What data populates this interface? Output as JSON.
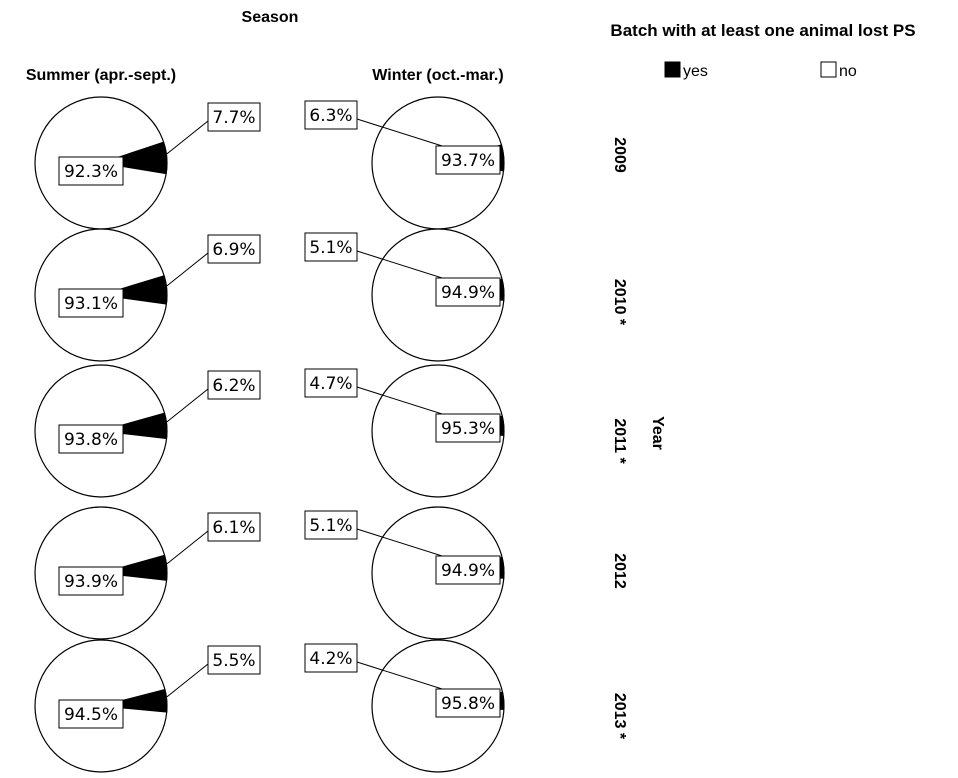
{
  "chart_data": {
    "type": "pie",
    "title": "Season",
    "legend": {
      "title": "Batch with at least one animal lost PS",
      "entries": [
        {
          "name": "yes",
          "color": "#000000"
        },
        {
          "name": "no",
          "color": "#ffffff"
        }
      ],
      "placement": "top-right"
    },
    "column_labels": [
      "Summer (apr.-sept.)",
      "Winter (oct.-mar.)"
    ],
    "row_axis_label": "Year",
    "row_labels": [
      "2009",
      "2010 *",
      "2011 *",
      "2012",
      "2013 *"
    ],
    "pies": [
      {
        "season": "Summer (apr.-sept.)",
        "year": "2009",
        "yes": 7.7,
        "no": 92.3,
        "yes_label": "7.7%",
        "no_label": "92.3%"
      },
      {
        "season": "Winter (oct.-mar.)",
        "year": "2009",
        "yes": 6.3,
        "no": 93.7,
        "yes_label": "6.3%",
        "no_label": "93.7%"
      },
      {
        "season": "Summer (apr.-sept.)",
        "year": "2010 *",
        "yes": 6.9,
        "no": 93.1,
        "yes_label": "6.9%",
        "no_label": "93.1%"
      },
      {
        "season": "Winter (oct.-mar.)",
        "year": "2010 *",
        "yes": 5.1,
        "no": 94.9,
        "yes_label": "5.1%",
        "no_label": "94.9%"
      },
      {
        "season": "Summer (apr.-sept.)",
        "year": "2011 *",
        "yes": 6.2,
        "no": 93.8,
        "yes_label": "6.2%",
        "no_label": "93.8%"
      },
      {
        "season": "Winter (oct.-mar.)",
        "year": "2011 *",
        "yes": 4.7,
        "no": 95.3,
        "yes_label": "4.7%",
        "no_label": "95.3%"
      },
      {
        "season": "Summer (apr.-sept.)",
        "year": "2012",
        "yes": 6.1,
        "no": 93.9,
        "yes_label": "6.1%",
        "no_label": "93.9%"
      },
      {
        "season": "Winter (oct.-mar.)",
        "year": "2012",
        "yes": 5.1,
        "no": 94.9,
        "yes_label": "5.1%",
        "no_label": "94.9%"
      },
      {
        "season": "Summer (apr.-sept.)",
        "year": "2013 *",
        "yes": 5.5,
        "no": 94.5,
        "yes_label": "5.5%",
        "no_label": "94.5%"
      },
      {
        "season": "Winter (oct.-mar.)",
        "year": "2013 *",
        "yes": 4.2,
        "no": 95.8,
        "yes_label": "4.2%",
        "no_label": "95.8%"
      }
    ]
  }
}
